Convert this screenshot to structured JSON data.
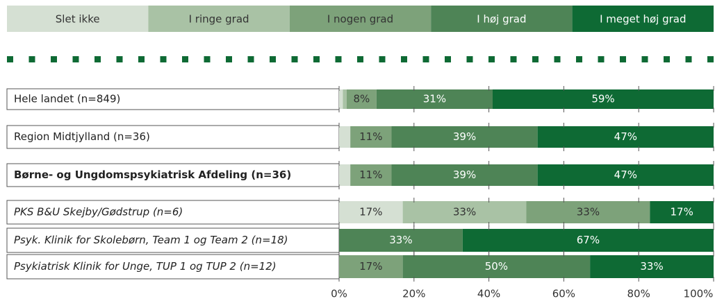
{
  "chart_data": {
    "type": "stacked_barh",
    "categories": [
      "Hele landet (n=849)",
      "Region Midtjylland (n=36)",
      "Børne- og Ungdomspsykiatrisk Afdeling (n=36)",
      "PKS B&U Skejby/Gødstrup (n=6)",
      "Psyk. Klinik for Skolebørn, Team 1 og Team 2 (n=18)",
      "Psykiatrisk Klinik for Unge, TUP 1 og TUP 2 (n=12)"
    ],
    "series": [
      {
        "name": "Slet ikke",
        "color": "#d5e0d3",
        "values": [
          1,
          3,
          3,
          17,
          0,
          0
        ],
        "value_labels": [
          null,
          null,
          null,
          "17%",
          null,
          null
        ]
      },
      {
        "name": "I ringe grad",
        "color": "#a9c2a5",
        "values": [
          1,
          0,
          0,
          33,
          0,
          0
        ],
        "value_labels": [
          null,
          null,
          null,
          "33%",
          null,
          null
        ]
      },
      {
        "name": "I nogen grad",
        "color": "#7da27a",
        "values": [
          8,
          11,
          11,
          33,
          0,
          17
        ],
        "value_labels": [
          "8%",
          "11%",
          "11%",
          "33%",
          null,
          "17%"
        ]
      },
      {
        "name": "I høj grad",
        "color": "#4e8456",
        "values": [
          31,
          39,
          39,
          0,
          33,
          50
        ],
        "value_labels": [
          "31%",
          "39%",
          "39%",
          null,
          "33%",
          "50%"
        ]
      },
      {
        "name": "I meget høj grad",
        "color": "#0e6a34",
        "values": [
          59,
          47,
          47,
          17,
          67,
          33
        ],
        "value_labels": [
          "59%",
          "47%",
          "47%",
          "17%",
          "67%",
          "33%"
        ]
      }
    ],
    "xlim": [
      0,
      100
    ],
    "xticks": [
      {
        "value": 0,
        "label": "0%"
      },
      {
        "value": 20,
        "label": "20%"
      },
      {
        "value": 40,
        "label": "40%"
      },
      {
        "value": 60,
        "label": "60%"
      },
      {
        "value": 80,
        "label": "80%"
      },
      {
        "value": 100,
        "label": "100%"
      }
    ]
  }
}
